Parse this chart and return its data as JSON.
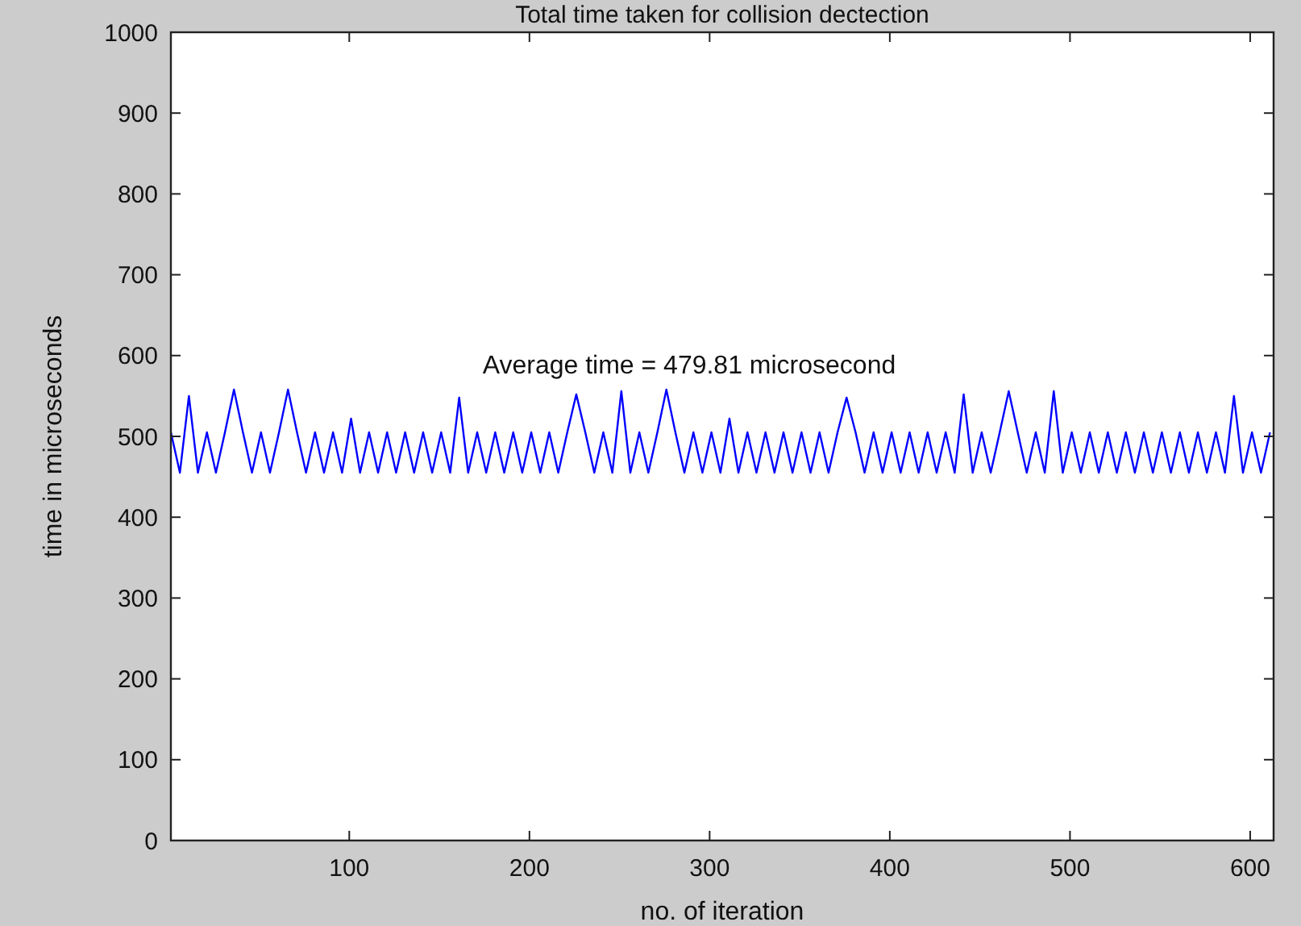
{
  "chart_data": {
    "type": "line",
    "title": "Total time taken for collision dectection",
    "xlabel": "no. of iteration",
    "ylabel": "time in microseconds",
    "annotations": [
      "Average time = 479.81 microsecond"
    ],
    "x": [
      1,
      6,
      11,
      16,
      21,
      26,
      31,
      36,
      41,
      46,
      51,
      56,
      61,
      66,
      71,
      76,
      81,
      86,
      91,
      96,
      101,
      106,
      111,
      116,
      121,
      126,
      131,
      136,
      141,
      146,
      151,
      156,
      161,
      166,
      171,
      176,
      181,
      186,
      191,
      196,
      201,
      206,
      211,
      216,
      221,
      226,
      231,
      236,
      241,
      246,
      251,
      256,
      261,
      266,
      271,
      276,
      281,
      286,
      291,
      296,
      301,
      306,
      311,
      316,
      321,
      326,
      331,
      336,
      341,
      346,
      351,
      356,
      361,
      366,
      371,
      376,
      381,
      386,
      391,
      396,
      401,
      406,
      411,
      416,
      421,
      426,
      431,
      436,
      441,
      446,
      451,
      456,
      461,
      466,
      471,
      476,
      481,
      486,
      491,
      496,
      501,
      506,
      511,
      516,
      521,
      526,
      531,
      536,
      541,
      546,
      551,
      556,
      561,
      566,
      571,
      576,
      581,
      586,
      591,
      596,
      601,
      606,
      611
    ],
    "series": [
      {
        "color": "#0000ff",
        "values": [
          505,
          455,
          550,
          455,
          505,
          455,
          505,
          558,
          505,
          455,
          505,
          455,
          505,
          558,
          505,
          455,
          505,
          455,
          505,
          455,
          522,
          455,
          505,
          455,
          505,
          455,
          505,
          455,
          505,
          455,
          505,
          455,
          548,
          455,
          505,
          455,
          505,
          455,
          505,
          455,
          505,
          455,
          505,
          455,
          505,
          552,
          505,
          455,
          505,
          455,
          556,
          455,
          505,
          455,
          505,
          558,
          505,
          455,
          505,
          455,
          505,
          455,
          522,
          455,
          505,
          455,
          505,
          455,
          505,
          455,
          505,
          455,
          505,
          455,
          505,
          548,
          505,
          455,
          505,
          455,
          505,
          455,
          505,
          455,
          505,
          455,
          505,
          455,
          552,
          455,
          505,
          455,
          505,
          556,
          505,
          455,
          505,
          455,
          556,
          455,
          505,
          455,
          505,
          455,
          505,
          455,
          505,
          455,
          505,
          455,
          505,
          455,
          505,
          455,
          505,
          455,
          505,
          455,
          550,
          455,
          505,
          455,
          505
        ]
      }
    ],
    "xlim": [
      1,
      613
    ],
    "xticks": [
      100,
      200,
      300,
      400,
      500,
      600
    ],
    "ylim": [
      0,
      1000
    ],
    "yticks": [
      0,
      100,
      200,
      300,
      400,
      500,
      600,
      700,
      800,
      900,
      1000
    ],
    "grid": false,
    "marker": "none",
    "line_style": "solid"
  }
}
